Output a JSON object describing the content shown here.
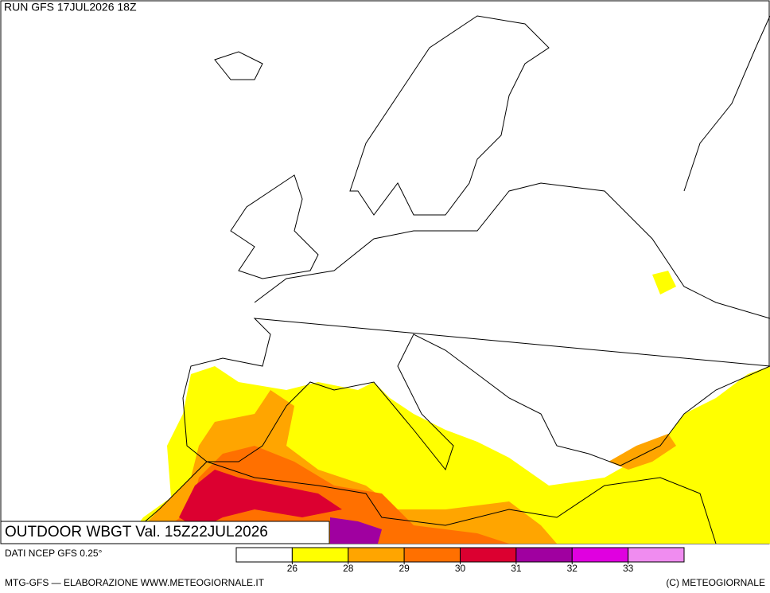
{
  "header": {
    "run": "RUN GFS 17JUL2026 18Z"
  },
  "map": {
    "title": "OUTDOOR WBGT Val. 15Z22JUL2026"
  },
  "legend": {
    "source": "DATI NCEP GFS 0.25°",
    "colors": [
      "#ffffff",
      "#ffff00",
      "#ffa500",
      "#ff7000",
      "#dc0030",
      "#a000a0",
      "#e000e0",
      "#f08cf0"
    ],
    "ticks": [
      26,
      28,
      29,
      30,
      31,
      32,
      33
    ]
  },
  "footer": {
    "left": "MTG-GFS — ELABORAZIONE WWW.METEOGIORNALE.IT",
    "right": "(C) METEOGIORNALE"
  }
}
